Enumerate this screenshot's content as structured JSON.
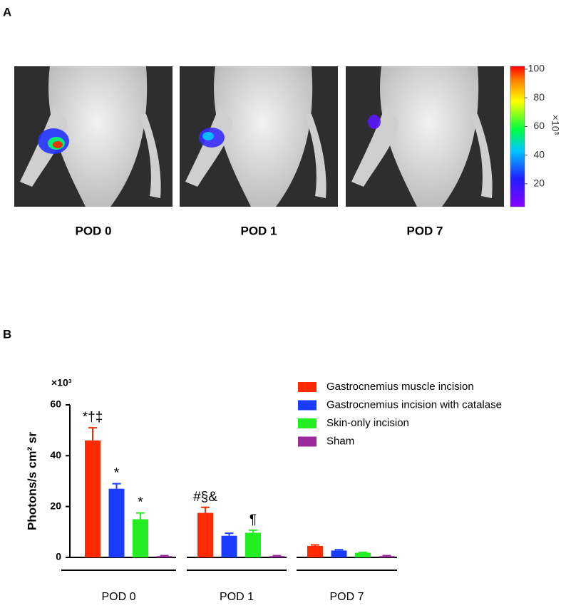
{
  "panel_a": {
    "label": "A",
    "images": [
      {
        "caption": "POD 0"
      },
      {
        "caption": "POD 1"
      },
      {
        "caption": "POD 7"
      }
    ],
    "colorbar": {
      "clim": [
        4,
        102
      ],
      "ticks": [
        20,
        40,
        60,
        80,
        100
      ],
      "unit": "×10³"
    }
  },
  "chart_data": {
    "type": "bar",
    "panel_label": "B",
    "y_label": "Photons/s cm² sr",
    "y_unit": "×10³",
    "categories": [
      "POD 0",
      "POD 1",
      "POD 7"
    ],
    "series": [
      {
        "name": "Gastrocnemius muscle incision",
        "color": "#ff2a00",
        "values": [
          46,
          17.5,
          4.5
        ],
        "errors": [
          5,
          2.2,
          0.4
        ],
        "significance": [
          "*†‡",
          "#§&",
          null
        ]
      },
      {
        "name": "Gastrocnemius incision with catalase",
        "color": "#1a3cff",
        "values": [
          27,
          8.5,
          2.7
        ],
        "errors": [
          2,
          1,
          0.3
        ],
        "significance": [
          "*",
          null,
          null
        ]
      },
      {
        "name": "Skin-only incision",
        "color": "#22ee22",
        "values": [
          15,
          9.7,
          1.8
        ],
        "errors": [
          2.5,
          1,
          0.2
        ],
        "significance": [
          "*",
          "¶",
          null
        ]
      },
      {
        "name": "Sham",
        "color": "#9b2a9b",
        "values": [
          0.5,
          0.5,
          0.5
        ],
        "errors": [
          0.2,
          0.2,
          0.2
        ],
        "significance": [
          null,
          null,
          null
        ]
      }
    ],
    "ylim": [
      0,
      60
    ],
    "yticks": [
      0,
      20,
      40,
      60
    ],
    "legend": "upper-right",
    "grid": false
  }
}
